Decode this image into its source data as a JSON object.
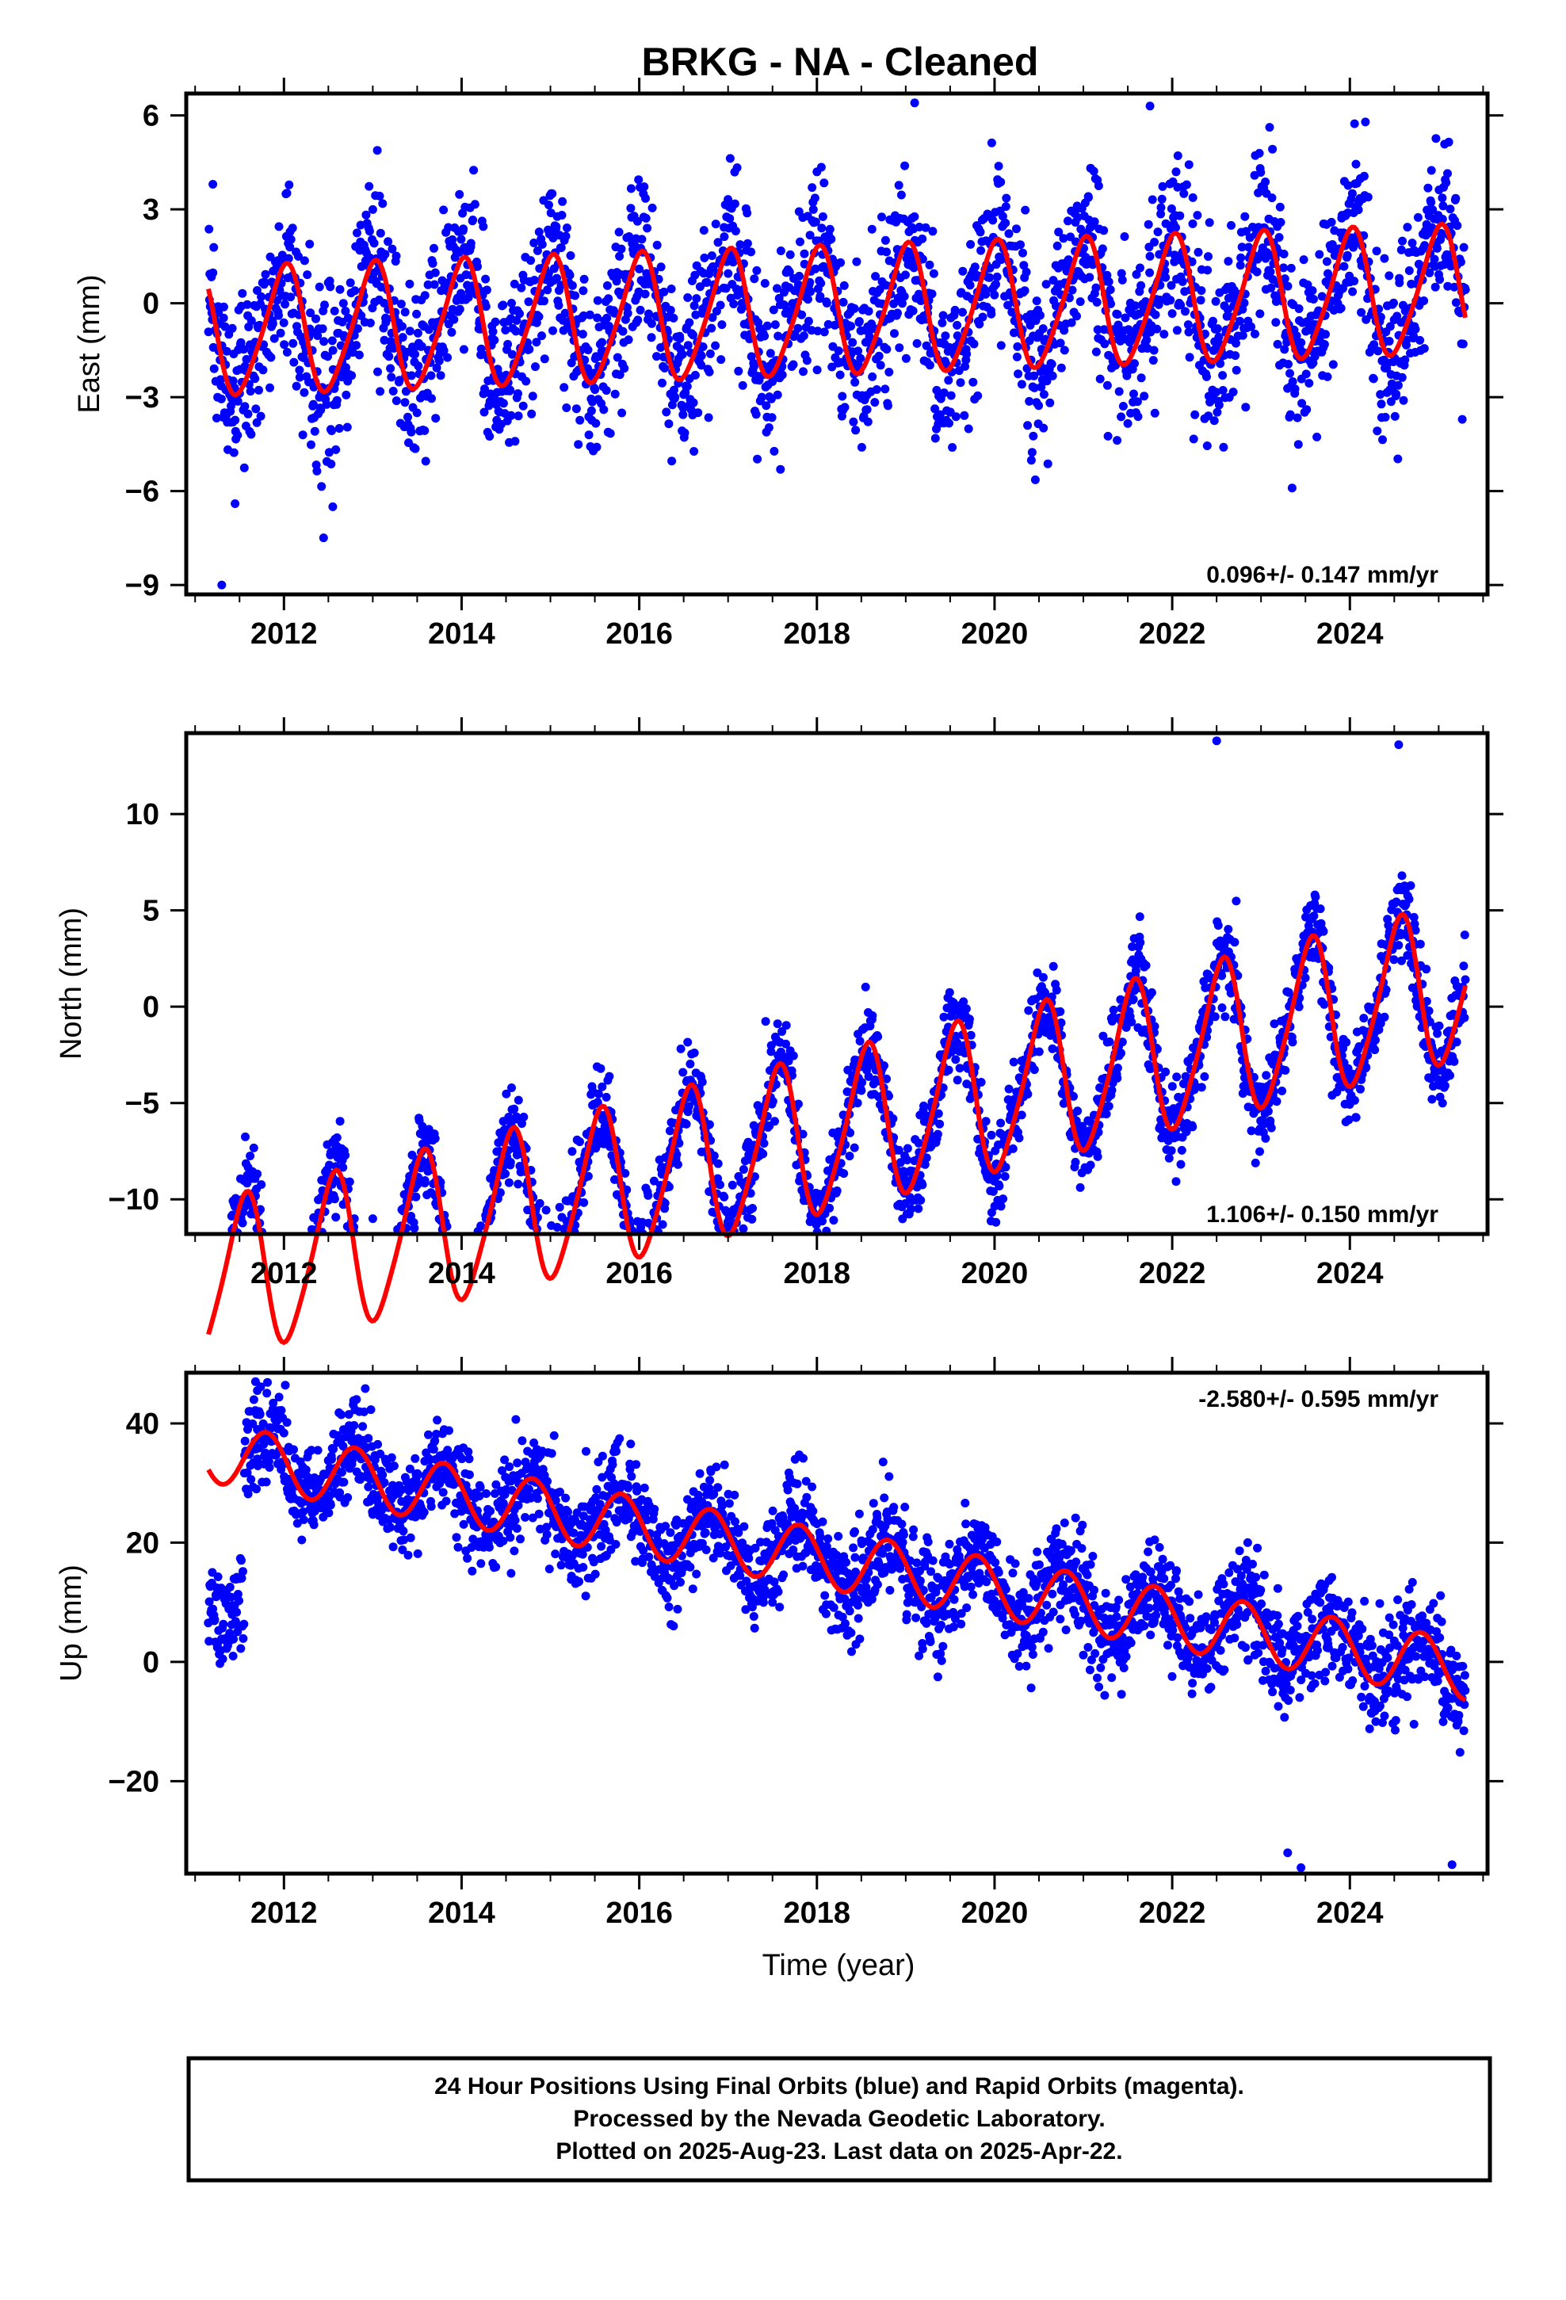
{
  "title": "BRKG  - NA - Cleaned",
  "xlabel": "Time (year)",
  "colors": {
    "final_orbits": "#0000ff",
    "rapid_orbits": "#ff00ff",
    "model_fit": "#ff0000"
  },
  "footer": {
    "line1": "24 Hour Positions Using Final Orbits (blue) and Rapid Orbits (magenta).",
    "line2": "Processed by the Nevada Geodetic Laboratory.",
    "line3": "Plotted on 2025-Aug-23. Last data on 2025-Apr-22."
  },
  "chart_data": [
    {
      "type": "scatter",
      "component": "east",
      "ylabel": "East (mm)",
      "rate_text": "0.096+/- 0.147 mm/yr",
      "xlim": [
        2010.9,
        2025.55
      ],
      "ylim": [
        -9.3,
        6.7
      ],
      "x_ticks": [
        2012,
        2014,
        2016,
        2018,
        2020,
        2022,
        2024
      ],
      "y_ticks": [
        -9,
        -6,
        -3,
        0,
        3,
        6
      ],
      "y_tick_labels": [
        "−9",
        "−6",
        "−3",
        "0",
        "3",
        "6"
      ],
      "model": {
        "start": 2011.15,
        "end": 2025.3,
        "offset": -0.3,
        "trend": 0.096,
        "amplitude": 2.0,
        "peak_phase": 0.0,
        "semiannual_amp": 0.3,
        "noise": 1.3
      },
      "outliers": [
        [
          2011.3,
          -9.0
        ],
        [
          2011.45,
          -6.4
        ],
        [
          2012.55,
          -6.5
        ],
        [
          2019.1,
          6.4
        ],
        [
          2021.75,
          6.3
        ],
        [
          2023.35,
          -5.9
        ],
        [
          2011.2,
          3.8
        ]
      ]
    },
    {
      "type": "scatter",
      "component": "north",
      "ylabel": "North (mm)",
      "rate_text": "1.106+/- 0.150 mm/yr",
      "xlim": [
        2010.9,
        2025.55
      ],
      "ylim": [
        -11.8,
        14.2
      ],
      "x_ticks": [
        2012,
        2014,
        2016,
        2018,
        2020,
        2022,
        2024
      ],
      "y_ticks": [
        -10,
        -5,
        0,
        5,
        10
      ],
      "y_tick_labels": [
        "−10",
        "−5",
        "0",
        "5",
        "10"
      ],
      "model": {
        "start": 2011.15,
        "end": 2025.3,
        "offset": -6.8,
        "trend": 1.106,
        "amplitude": 4.0,
        "peak_phase": 0.55,
        "semiannual_amp": 0.6,
        "noise": 1.1
      },
      "outliers": [
        [
          2013.0,
          -11.0
        ],
        [
          2023.8,
          -4.6
        ],
        [
          2022.5,
          13.8
        ],
        [
          2024.55,
          13.6
        ],
        [
          2016.1,
          -9.8
        ]
      ]
    },
    {
      "type": "scatter",
      "component": "up",
      "ylabel": "Up (mm)",
      "rate_text": "-2.580+/- 0.595 mm/yr",
      "xlim": [
        2010.9,
        2025.55
      ],
      "ylim": [
        -35.5,
        48.5
      ],
      "x_ticks": [
        2012,
        2014,
        2016,
        2018,
        2020,
        2022,
        2024
      ],
      "y_ticks": [
        -20,
        0,
        20,
        40
      ],
      "y_tick_labels": [
        "−20",
        "0",
        "20",
        "40"
      ],
      "model": {
        "start": 2011.15,
        "end": 2025.3,
        "offset": 17.5,
        "trend": -2.58,
        "amplitude": 5.0,
        "peak_phase": 0.8,
        "semiannual_amp": 0.0,
        "noise": 4.2,
        "early_offset": -23,
        "early_end": 2011.55
      },
      "outliers": [
        [
          2011.68,
          47.0
        ],
        [
          2011.7,
          45.5
        ],
        [
          2011.72,
          42.0
        ],
        [
          2011.7,
          39.0
        ],
        [
          2012.95,
          37.5
        ],
        [
          2022.85,
          20.0
        ],
        [
          2023.45,
          -34.5
        ],
        [
          2025.2,
          1.0
        ],
        [
          2023.3,
          -32.0
        ],
        [
          2025.15,
          -34.0
        ]
      ]
    }
  ]
}
